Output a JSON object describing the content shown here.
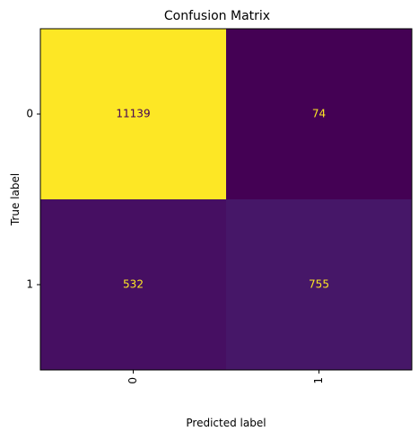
{
  "chart_data": {
    "type": "heatmap",
    "title": "Confusion Matrix",
    "xlabel": "Predicted label",
    "ylabel": "True label",
    "x_categories": [
      "0",
      "1"
    ],
    "y_categories": [
      "0",
      "1"
    ],
    "values": [
      [
        11139,
        74
      ],
      [
        532,
        755
      ]
    ],
    "colormap": "viridis",
    "colorbar": false,
    "x_tick_rotation": 90,
    "text_colors": {
      "on_light": "#440154",
      "on_dark": "#fde725"
    }
  }
}
